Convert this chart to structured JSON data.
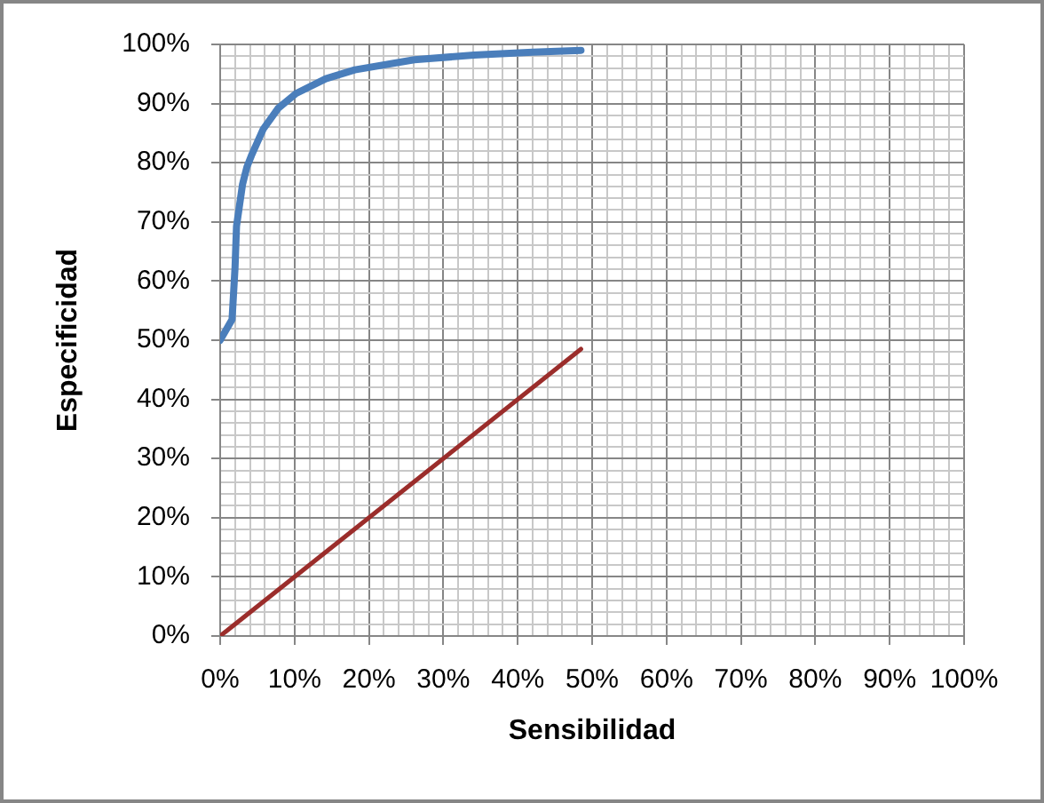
{
  "chart_data": {
    "type": "line",
    "xlabel": "Sensibilidad",
    "ylabel": "Especificidad",
    "xlim": [
      0,
      100
    ],
    "ylim": [
      0,
      100
    ],
    "xticks": [
      {
        "value": 0,
        "label": "0%"
      },
      {
        "value": 2,
        "label": null
      },
      {
        "value": 4,
        "label": null
      },
      {
        "value": 6,
        "label": null
      },
      {
        "value": 8,
        "label": null
      },
      {
        "value": 10,
        "label": "10%"
      },
      {
        "value": 12,
        "label": null
      },
      {
        "value": 14,
        "label": null
      },
      {
        "value": 16,
        "label": null
      },
      {
        "value": 18,
        "label": null
      },
      {
        "value": 20,
        "label": "20%"
      },
      {
        "value": 22,
        "label": null
      },
      {
        "value": 24,
        "label": null
      },
      {
        "value": 26,
        "label": null
      },
      {
        "value": 28,
        "label": null
      },
      {
        "value": 30,
        "label": "30%"
      },
      {
        "value": 32,
        "label": null
      },
      {
        "value": 34,
        "label": null
      },
      {
        "value": 36,
        "label": null
      },
      {
        "value": 38,
        "label": null
      },
      {
        "value": 40,
        "label": "40%"
      },
      {
        "value": 42,
        "label": null
      },
      {
        "value": 44,
        "label": null
      },
      {
        "value": 46,
        "label": null
      },
      {
        "value": 48,
        "label": null
      },
      {
        "value": 50,
        "label": "50%"
      },
      {
        "value": 52,
        "label": null
      },
      {
        "value": 54,
        "label": null
      },
      {
        "value": 56,
        "label": null
      },
      {
        "value": 58,
        "label": null
      },
      {
        "value": 60,
        "label": "60%"
      },
      {
        "value": 62,
        "label": null
      },
      {
        "value": 64,
        "label": null
      },
      {
        "value": 66,
        "label": null
      },
      {
        "value": 68,
        "label": null
      },
      {
        "value": 70,
        "label": "70%"
      },
      {
        "value": 72,
        "label": null
      },
      {
        "value": 74,
        "label": null
      },
      {
        "value": 76,
        "label": null
      },
      {
        "value": 78,
        "label": null
      },
      {
        "value": 80,
        "label": "80%"
      },
      {
        "value": 82,
        "label": null
      },
      {
        "value": 84,
        "label": null
      },
      {
        "value": 86,
        "label": null
      },
      {
        "value": 88,
        "label": null
      },
      {
        "value": 90,
        "label": "90%"
      },
      {
        "value": 92,
        "label": null
      },
      {
        "value": 94,
        "label": null
      },
      {
        "value": 96,
        "label": null
      },
      {
        "value": 98,
        "label": null
      },
      {
        "value": 100,
        "label": "100%"
      }
    ],
    "yticks": [
      {
        "value": 0,
        "label": "0%"
      },
      {
        "value": 2,
        "label": null
      },
      {
        "value": 4,
        "label": null
      },
      {
        "value": 6,
        "label": null
      },
      {
        "value": 8,
        "label": null
      },
      {
        "value": 10,
        "label": "10%"
      },
      {
        "value": 12,
        "label": null
      },
      {
        "value": 14,
        "label": null
      },
      {
        "value": 16,
        "label": null
      },
      {
        "value": 18,
        "label": null
      },
      {
        "value": 20,
        "label": "20%"
      },
      {
        "value": 22,
        "label": null
      },
      {
        "value": 24,
        "label": null
      },
      {
        "value": 26,
        "label": null
      },
      {
        "value": 28,
        "label": null
      },
      {
        "value": 30,
        "label": "30%"
      },
      {
        "value": 32,
        "label": null
      },
      {
        "value": 34,
        "label": null
      },
      {
        "value": 36,
        "label": null
      },
      {
        "value": 38,
        "label": null
      },
      {
        "value": 40,
        "label": "40%"
      },
      {
        "value": 42,
        "label": null
      },
      {
        "value": 44,
        "label": null
      },
      {
        "value": 46,
        "label": null
      },
      {
        "value": 48,
        "label": null
      },
      {
        "value": 50,
        "label": "50%"
      },
      {
        "value": 52,
        "label": null
      },
      {
        "value": 54,
        "label": null
      },
      {
        "value": 56,
        "label": null
      },
      {
        "value": 58,
        "label": null
      },
      {
        "value": 60,
        "label": "60%"
      },
      {
        "value": 62,
        "label": null
      },
      {
        "value": 64,
        "label": null
      },
      {
        "value": 66,
        "label": null
      },
      {
        "value": 68,
        "label": null
      },
      {
        "value": 70,
        "label": "70%"
      },
      {
        "value": 72,
        "label": null
      },
      {
        "value": 74,
        "label": null
      },
      {
        "value": 76,
        "label": null
      },
      {
        "value": 78,
        "label": null
      },
      {
        "value": 80,
        "label": "80%"
      },
      {
        "value": 82,
        "label": null
      },
      {
        "value": 84,
        "label": null
      },
      {
        "value": 86,
        "label": null
      },
      {
        "value": 88,
        "label": null
      },
      {
        "value": 90,
        "label": "90%"
      },
      {
        "value": 92,
        "label": null
      },
      {
        "value": 94,
        "label": null
      },
      {
        "value": 96,
        "label": null
      },
      {
        "value": 98,
        "label": null
      },
      {
        "value": 100,
        "label": "100%"
      }
    ],
    "grid": true,
    "series": [
      {
        "color": "#4a7ebb",
        "x": [
          0,
          1.6,
          2.0,
          2.2,
          3.0,
          3.6,
          4.2,
          5.8,
          7.8,
          10.2,
          14.2,
          18.1,
          26.1,
          34.1,
          42.0,
          48.5
        ],
        "values": [
          50,
          53.5,
          62.3,
          69.3,
          76.3,
          79.3,
          81.2,
          85.7,
          89.2,
          91.7,
          94.2,
          95.7,
          97.4,
          98.2,
          98.7,
          99.0
        ]
      },
      {
        "color": "#9b2d2b",
        "x": [
          0,
          48.5
        ],
        "values": [
          0,
          48.5
        ]
      }
    ]
  }
}
